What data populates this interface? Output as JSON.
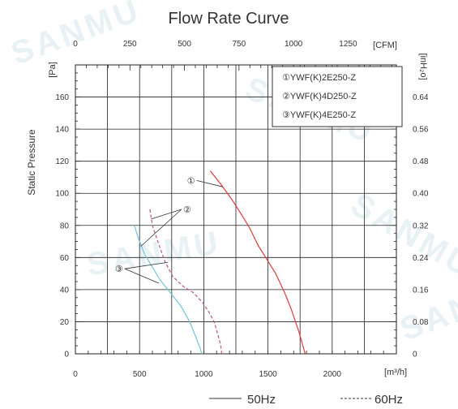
{
  "chart_data": {
    "type": "line",
    "title": "Flow Rate Curve",
    "ylabel": "Static Pressure",
    "y_unit": "[Pa]",
    "y2_unit": "[inH₂o]",
    "x_unit": "[m³/h]",
    "x2_unit": "[CFM]",
    "xlim": [
      0,
      2500
    ],
    "ylim": [
      0,
      180
    ],
    "x_ticks": [
      0,
      500,
      1000,
      1500,
      2000
    ],
    "x_tick_labels": [
      "0",
      "500",
      "1000",
      "1500",
      "2000"
    ],
    "x2_ticks": [
      0,
      250,
      500,
      750,
      1000,
      1250
    ],
    "x2_tick_labels": [
      "0",
      "250",
      "500",
      "750",
      "1000",
      "1250"
    ],
    "y_ticks": [
      0,
      20,
      40,
      60,
      80,
      100,
      120,
      140,
      160
    ],
    "y_tick_labels": [
      "0",
      "20",
      "40",
      "60",
      "80",
      "100",
      "120",
      "140",
      "160"
    ],
    "y2_tick_labels": [
      "0",
      "0.08",
      "0.16",
      "0.24",
      "0.32",
      "0.40",
      "0.48",
      "0.56",
      "0.64"
    ],
    "grid": true,
    "legend": {
      "position": "top-right",
      "entries": [
        "①YWF(K)2E250-Z",
        "②YWF(K)4D250-Z",
        "③YWF(K)4E250-Z"
      ]
    },
    "series": [
      {
        "name": "①YWF(K)2E250-Z",
        "color": "#e03a3a",
        "dash": "solid",
        "x": [
          1050,
          1130,
          1220,
          1300,
          1360,
          1420,
          1490,
          1560,
          1630,
          1680,
          1740,
          1790
        ],
        "y": [
          114,
          106,
          96,
          86,
          78,
          68,
          59,
          50,
          38,
          28,
          14,
          0
        ]
      },
      {
        "name": "②YWF(K)4D250-Z",
        "color": "#b85a88",
        "dash": "dashed",
        "x": [
          580,
          600,
          650,
          700,
          760,
          840,
          920,
          990,
          1040,
          1080,
          1110,
          1130,
          1140
        ],
        "y": [
          90,
          80,
          68,
          57,
          48,
          42,
          38,
          32,
          26,
          20,
          12,
          6,
          0
        ]
      },
      {
        "name": "③YWF(K)4E250-Z",
        "color": "#74c2dc",
        "dash": "solid",
        "x": [
          460,
          490,
          540,
          600,
          660,
          740,
          820,
          890,
          940,
          970,
          985
        ],
        "y": [
          80,
          72,
          62,
          54,
          46,
          38,
          30,
          20,
          10,
          4,
          0
        ]
      }
    ],
    "annotations": [
      {
        "label": "①",
        "text_at": [
          900,
          108
        ],
        "points_to": [
          1150,
          104
        ]
      },
      {
        "label": "②",
        "text_at": [
          870,
          90
        ],
        "points": [
          [
            590,
            84
          ],
          [
            510,
            67
          ]
        ]
      },
      {
        "label": "③",
        "text_at": [
          340,
          53
        ],
        "points": [
          [
            720,
            57
          ],
          [
            650,
            44
          ]
        ]
      }
    ],
    "footer_legend": [
      {
        "label": "50Hz",
        "dash": "solid"
      },
      {
        "label": "60Hz",
        "dash": "dashed"
      }
    ]
  },
  "watermark": "SANMU"
}
